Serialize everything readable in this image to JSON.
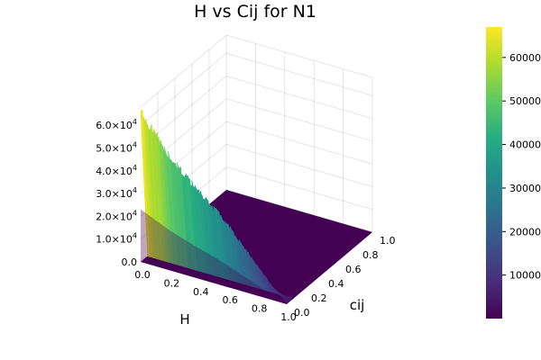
{
  "chart_data": {
    "type": "surface",
    "title": "H vs Cij for N1",
    "xlabel": "H",
    "ylabel": "cij",
    "zlabel": "",
    "xlim": [
      0,
      1
    ],
    "ylim": [
      0,
      1
    ],
    "zlim": [
      0,
      68000
    ],
    "x_ticks": [
      "0.0",
      "0.2",
      "0.4",
      "0.6",
      "0.8",
      "1.0"
    ],
    "y_ticks": [
      "0.0",
      "0.2",
      "0.4",
      "0.6",
      "0.8",
      "1.0"
    ],
    "z_ticks": [
      {
        "value": 0,
        "base": "0.0",
        "exp": ""
      },
      {
        "value": 10000,
        "base": "1.0×10",
        "exp": "4"
      },
      {
        "value": 20000,
        "base": "2.0×10",
        "exp": "4"
      },
      {
        "value": 30000,
        "base": "3.0×10",
        "exp": "4"
      },
      {
        "value": 40000,
        "base": "4.0×10",
        "exp": "4"
      },
      {
        "value": 50000,
        "base": "5.0×10",
        "exp": "4"
      },
      {
        "value": 60000,
        "base": "6.0×10",
        "exp": "4"
      }
    ],
    "front_edge_profile": {
      "description_source": "values read at cij = 0 along H",
      "H": [
        0.0,
        0.1,
        0.2,
        0.3,
        0.4,
        0.5,
        0.6,
        0.7,
        0.8,
        0.9,
        1.0
      ],
      "z": [
        66000,
        58000,
        50000,
        44000,
        38000,
        33000,
        27000,
        20000,
        13000,
        6000,
        500
      ]
    },
    "surface_rule": "z(H, cij) = front_edge(H) for cij near 0, dropping to about 0 for cij > 0.08",
    "colorbar": {
      "colormap": "viridis",
      "range": [
        0,
        67000
      ],
      "tick_values": [
        10000,
        20000,
        30000,
        40000,
        50000,
        60000
      ],
      "tick_labels": [
        "10000",
        "20000",
        "30000",
        "40000",
        "50000",
        "60000"
      ]
    },
    "grid": true
  }
}
